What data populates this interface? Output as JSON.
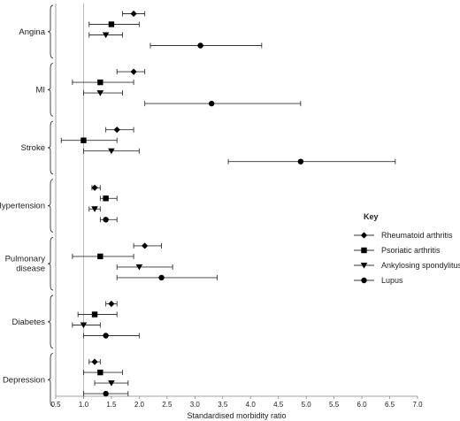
{
  "chart_data": {
    "type": "forest",
    "xlabel": "Standardised morbidity ratio",
    "xlim": [
      0.5,
      7.0
    ],
    "x_ticks": [
      "0.5",
      "1.0",
      "1.5",
      "2.0",
      "2.5",
      "3.0",
      "3.5",
      "4.0",
      "4.5",
      "5.0",
      "5.5",
      "6.0",
      "6.5",
      "7.0"
    ],
    "reference_line": 1.0,
    "legend_title": "Key",
    "series": [
      {
        "name": "Rheumatoid arthritis",
        "marker": "diamond"
      },
      {
        "name": "Psoriatic arthritis",
        "marker": "square"
      },
      {
        "name": "Ankylosing spondylitus",
        "marker": "triangle-down"
      },
      {
        "name": "Lupus",
        "marker": "circle"
      }
    ],
    "groups": [
      {
        "label": [
          "Angina"
        ],
        "points": [
          {
            "series": 0,
            "value": 1.9,
            "lo": 1.7,
            "hi": 2.1
          },
          {
            "series": 1,
            "value": 1.5,
            "lo": 1.1,
            "hi": 2.0
          },
          {
            "series": 2,
            "value": 1.4,
            "lo": 1.1,
            "hi": 1.7
          },
          {
            "series": 3,
            "value": 3.1,
            "lo": 2.2,
            "hi": 4.2
          }
        ]
      },
      {
        "label": [
          "MI"
        ],
        "points": [
          {
            "series": 0,
            "value": 1.9,
            "lo": 1.6,
            "hi": 2.1
          },
          {
            "series": 1,
            "value": 1.3,
            "lo": 0.8,
            "hi": 1.9
          },
          {
            "series": 2,
            "value": 1.3,
            "lo": 1.0,
            "hi": 1.7
          },
          {
            "series": 3,
            "value": 3.3,
            "lo": 2.1,
            "hi": 4.9
          }
        ]
      },
      {
        "label": [
          "Stroke"
        ],
        "points": [
          {
            "series": 0,
            "value": 1.6,
            "lo": 1.4,
            "hi": 1.9
          },
          {
            "series": 1,
            "value": 1.0,
            "lo": 0.6,
            "hi": 1.6
          },
          {
            "series": 2,
            "value": 1.5,
            "lo": 1.0,
            "hi": 2.0
          },
          {
            "series": 3,
            "value": 4.9,
            "lo": 3.6,
            "hi": 6.6
          }
        ]
      },
      {
        "label": [
          "Hypertension"
        ],
        "points": [
          {
            "series": 0,
            "value": 1.2,
            "lo": 1.15,
            "hi": 1.3
          },
          {
            "series": 1,
            "value": 1.4,
            "lo": 1.3,
            "hi": 1.6
          },
          {
            "series": 2,
            "value": 1.2,
            "lo": 1.1,
            "hi": 1.3
          },
          {
            "series": 3,
            "value": 1.4,
            "lo": 1.3,
            "hi": 1.6
          }
        ]
      },
      {
        "label": [
          "Pulmonary",
          "disease"
        ],
        "points": [
          {
            "series": 0,
            "value": 2.1,
            "lo": 1.9,
            "hi": 2.4
          },
          {
            "series": 1,
            "value": 1.3,
            "lo": 0.8,
            "hi": 1.9
          },
          {
            "series": 2,
            "value": 2.0,
            "lo": 1.6,
            "hi": 2.6
          },
          {
            "series": 3,
            "value": 2.4,
            "lo": 1.6,
            "hi": 3.4
          }
        ]
      },
      {
        "label": [
          "Diabetes"
        ],
        "points": [
          {
            "series": 0,
            "value": 1.5,
            "lo": 1.4,
            "hi": 1.6
          },
          {
            "series": 1,
            "value": 1.2,
            "lo": 0.9,
            "hi": 1.6
          },
          {
            "series": 2,
            "value": 1.0,
            "lo": 0.8,
            "hi": 1.3
          },
          {
            "series": 3,
            "value": 1.4,
            "lo": 1.0,
            "hi": 2.0
          }
        ]
      },
      {
        "label": [
          "Depression"
        ],
        "points": [
          {
            "series": 0,
            "value": 1.2,
            "lo": 1.1,
            "hi": 1.3
          },
          {
            "series": 1,
            "value": 1.3,
            "lo": 1.0,
            "hi": 1.7
          },
          {
            "series": 2,
            "value": 1.5,
            "lo": 1.2,
            "hi": 1.8
          },
          {
            "series": 3,
            "value": 1.4,
            "lo": 1.0,
            "hi": 1.8
          }
        ]
      }
    ]
  }
}
